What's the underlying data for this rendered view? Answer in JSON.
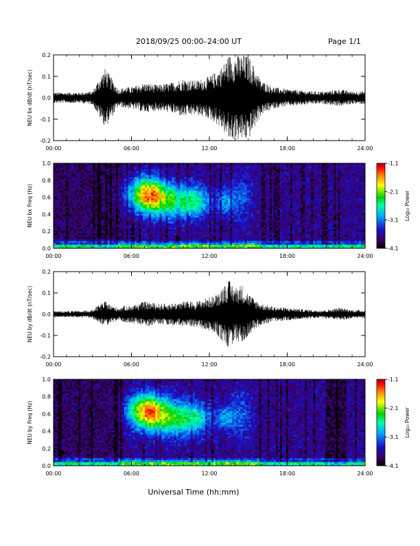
{
  "header": {
    "title": "2018/09/25  00:00–24:00 UT",
    "page": "Page 1/1"
  },
  "footer": {
    "xlabel": "Universal Time (hh:mm)"
  },
  "colors": {
    "waveform": "#000000",
    "colorbar": [
      "#000000",
      "#3a0060",
      "#1a10c8",
      "#00aaff",
      "#00ffaa",
      "#00d000",
      "#ffff00",
      "#ff8000",
      "#ff0000",
      "#a00000"
    ]
  },
  "chart_data": [
    {
      "type": "line",
      "id": "bx-waveform",
      "ylabel": "NEU bx dB/dt (nT/sec)",
      "xlim": [
        0,
        24
      ],
      "ylim": [
        -0.2,
        0.2
      ],
      "x_ticks": [
        "00:00",
        "06:00",
        "12:00",
        "18:00",
        "24:00"
      ],
      "y_ticks": [
        "-0.2",
        "-0.1",
        "0.0",
        "0.1",
        "0.2"
      ],
      "envelope": {
        "x_hours": [
          0,
          1,
          2,
          3,
          3.6,
          4,
          4.5,
          5,
          5.5,
          6,
          6.5,
          7,
          8,
          9,
          10,
          11,
          12,
          12.5,
          13,
          13.5,
          14,
          14.5,
          15,
          15.5,
          16,
          17,
          18,
          19,
          20,
          21,
          22,
          23,
          24
        ],
        "amplitude": [
          0.025,
          0.025,
          0.025,
          0.03,
          0.1,
          0.14,
          0.09,
          0.04,
          0.05,
          0.05,
          0.06,
          0.07,
          0.06,
          0.07,
          0.09,
          0.08,
          0.1,
          0.12,
          0.15,
          0.2,
          0.2,
          0.2,
          0.2,
          0.14,
          0.08,
          0.05,
          0.04,
          0.035,
          0.03,
          0.03,
          0.04,
          0.03,
          0.03
        ]
      }
    },
    {
      "type": "heatmap",
      "id": "bx-spectrogram",
      "ylabel": "NEU bx Freq (Hz)",
      "colorbar_label": "Log₁₀ Power",
      "colorbar_ticks": [
        "-1.1",
        "-2.1",
        "-3.1",
        "-4.1"
      ],
      "zlim": [
        -4.1,
        -1.1
      ],
      "xlim": [
        0,
        24
      ],
      "ylim": [
        0.0,
        1.0
      ],
      "x_ticks": [
        "00:00",
        "06:00",
        "12:00",
        "18:00",
        "24:00"
      ],
      "y_ticks": [
        "0.0",
        "0.2",
        "0.4",
        "0.6",
        "0.8",
        "1.0"
      ]
    },
    {
      "type": "line",
      "id": "by-waveform",
      "ylabel": "NEU by dB/dt (nT/sec)",
      "xlim": [
        0,
        24
      ],
      "ylim": [
        -0.2,
        0.2
      ],
      "x_ticks": [
        "00:00",
        "06:00",
        "12:00",
        "18:00",
        "24:00"
      ],
      "y_ticks": [
        "-0.2",
        "-0.1",
        "0.0",
        "0.1",
        "0.2"
      ],
      "envelope": {
        "x_hours": [
          0,
          1,
          2,
          3,
          3.6,
          4,
          4.5,
          5,
          5.5,
          6,
          6.5,
          7,
          8,
          9,
          10,
          11,
          12,
          12.5,
          13,
          13.5,
          14,
          14.5,
          15,
          15.5,
          16,
          17,
          18,
          19,
          20,
          21,
          22,
          23,
          24
        ],
        "amplitude": [
          0.015,
          0.015,
          0.015,
          0.02,
          0.05,
          0.06,
          0.04,
          0.03,
          0.04,
          0.04,
          0.05,
          0.06,
          0.05,
          0.05,
          0.06,
          0.06,
          0.08,
          0.09,
          0.13,
          0.16,
          0.13,
          0.14,
          0.1,
          0.07,
          0.05,
          0.035,
          0.03,
          0.025,
          0.02,
          0.02,
          0.03,
          0.02,
          0.02
        ]
      }
    },
    {
      "type": "heatmap",
      "id": "by-spectrogram",
      "ylabel": "NEU by Freq (Hz)",
      "colorbar_label": "Log₁₀ Power",
      "colorbar_ticks": [
        "-1.1",
        "-2.1",
        "-3.1",
        "-4.1"
      ],
      "zlim": [
        -4.1,
        -1.1
      ],
      "xlim": [
        0,
        24
      ],
      "ylim": [
        0.0,
        1.0
      ],
      "x_ticks": [
        "00:00",
        "06:00",
        "12:00",
        "18:00",
        "24:00"
      ],
      "y_ticks": [
        "0.0",
        "0.2",
        "0.4",
        "0.6",
        "0.8",
        "1.0"
      ]
    }
  ]
}
